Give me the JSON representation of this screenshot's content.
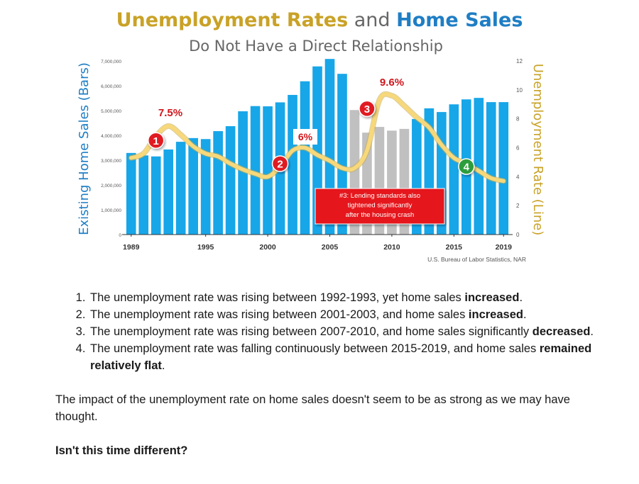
{
  "title": {
    "part1": "Unemployment Rates",
    "part2": " and ",
    "part3": "Home Sales",
    "subtitle": "Do Not Have a Direct Relationship",
    "colors": {
      "gold": "#c9a227",
      "blue": "#1f7ec4",
      "grey": "#666666"
    }
  },
  "chart_data": {
    "type": "bar+line",
    "categories": [
      1989,
      1990,
      1991,
      1992,
      1993,
      1994,
      1995,
      1996,
      1997,
      1998,
      1999,
      2000,
      2001,
      2002,
      2003,
      2004,
      2005,
      2006,
      2007,
      2008,
      2009,
      2010,
      2011,
      2012,
      2013,
      2014,
      2015,
      2016,
      2017,
      2018,
      2019
    ],
    "series": [
      {
        "name": "Existing Home Sales (Bars)",
        "axis": "left",
        "values": [
          3290000,
          3190000,
          3150000,
          3430000,
          3740000,
          3890000,
          3850000,
          4170000,
          4370000,
          4970000,
          5180000,
          5170000,
          5330000,
          5630000,
          6180000,
          6780000,
          7080000,
          6480000,
          5020000,
          4110000,
          4340000,
          4190000,
          4260000,
          4660000,
          5090000,
          4940000,
          5250000,
          5450000,
          5510000,
          5340000,
          5340000
        ],
        "highlight": [
          2007,
          2008,
          2009,
          2010,
          2011
        ],
        "color": "#17a6e8",
        "highlight_color": "#c0c0c0"
      },
      {
        "name": "Unemployment Rate (Line)",
        "axis": "right",
        "values": [
          5.3,
          5.6,
          6.8,
          7.5,
          6.9,
          6.1,
          5.6,
          5.4,
          4.9,
          4.5,
          4.2,
          4.0,
          4.7,
          5.8,
          6.0,
          5.5,
          5.1,
          4.6,
          4.6,
          5.8,
          9.3,
          9.6,
          8.9,
          8.1,
          7.4,
          6.2,
          5.3,
          4.9,
          4.4,
          3.9,
          3.7
        ],
        "color": "#f7d87a"
      }
    ],
    "ylim_left": [
      0,
      7000000
    ],
    "yticks_left": [
      "0",
      "1,000,000",
      "2,000,000",
      "3,000,000",
      "4,000,000",
      "5,000,000",
      "6,000,000",
      "7,000,000"
    ],
    "ylim_right": [
      0,
      12
    ],
    "yticks_right": [
      "0",
      "2",
      "4",
      "6",
      "8",
      "10",
      "12"
    ],
    "xticks": [
      "1989",
      "1995",
      "2000",
      "2005",
      "2010",
      "2015",
      "2019"
    ],
    "ylabel_left": "Existing Home Sales (Bars)",
    "ylabel_right": "Unemployment Rate (Line)",
    "source": "U.S. Bureau of Labor Statistics, NAR",
    "value_labels": [
      {
        "year": 1992,
        "text": "7.5%"
      },
      {
        "year": 2003,
        "text": "6%"
      },
      {
        "year": 2010,
        "text": "9.6%"
      }
    ],
    "markers": [
      {
        "label": "1",
        "year": 1991,
        "rate": 6.5,
        "color": "#e01b24"
      },
      {
        "label": "2",
        "year": 2001,
        "rate": 4.9,
        "color": "#e01b24"
      },
      {
        "label": "3",
        "year": 2008,
        "rate": 8.7,
        "color": "#e01b24"
      },
      {
        "label": "4",
        "year": 2016,
        "rate": 4.7,
        "color": "#2e9e3e"
      }
    ],
    "callout": {
      "lines": [
        "#3: Lending standards also",
        "tightened significantly",
        "after the housing crash"
      ],
      "color": "#e5161c"
    }
  },
  "list": [
    {
      "text": "The unemployment rate was rising between 1992-1993, yet home sales ",
      "bold": "increased",
      "end": "."
    },
    {
      "text": "The unemployment rate was rising between 2001-2003, and home sales ",
      "bold": "increased",
      "end": "."
    },
    {
      "text": "The unemployment rate was rising between 2007-2010, and home sales significantly ",
      "bold": "decreased",
      "end": "."
    },
    {
      "text": "The unemployment rate was falling continuously between 2015-2019, and home sales ",
      "bold": "remained relatively flat",
      "end": "."
    }
  ],
  "summary": "The impact of the unemployment rate on home sales doesn't seem to be as strong as we may have thought.",
  "question": "Isn't this time different?"
}
